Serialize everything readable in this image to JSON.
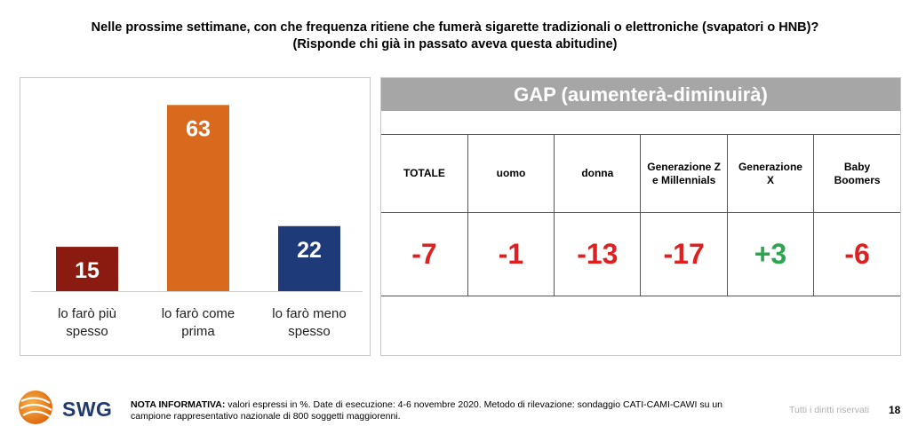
{
  "title": {
    "line1": "Nelle prossime settimane, con che frequenza ritiene che fumerà sigarette tradizionali o elettroniche (svapatori o HNB)?",
    "line2": "(Risponde chi già in passato aveva questa abitudine)"
  },
  "chart_data": [
    {
      "type": "bar",
      "categories": [
        "lo farò più spesso",
        "lo farò come prima",
        "lo farò meno spesso"
      ],
      "category_lines": [
        [
          "lo farò più",
          "spesso"
        ],
        [
          "lo farò come",
          "prima"
        ],
        [
          "lo farò meno",
          "spesso"
        ]
      ],
      "values": [
        15,
        63,
        22
      ],
      "colors": [
        "#8b1a10",
        "#d9691c",
        "#1f3a78"
      ],
      "ylim": [
        0,
        70
      ],
      "grid": false
    },
    {
      "type": "table",
      "title": "GAP (aumenterà-diminuirà)",
      "columns": [
        "TOTALE",
        "uomo",
        "donna",
        "Generazione Z e Millennials",
        "Generazione X",
        "Baby Boomers"
      ],
      "column_lines": [
        [
          "TOTALE"
        ],
        [
          "uomo"
        ],
        [
          "donna"
        ],
        [
          "Generazione Z",
          "e Millennials"
        ],
        [
          "Generazione",
          "X"
        ],
        [
          "Baby",
          "Boomers"
        ]
      ],
      "values": [
        "-7",
        "-1",
        "-13",
        "-17",
        "+3",
        "-6"
      ],
      "value_colors": [
        "#e02020",
        "#e02020",
        "#e02020",
        "#e02020",
        "#2da44e",
        "#e02020"
      ]
    }
  ],
  "footer": {
    "logo_text": "SWG",
    "note_bold": "NOTA INFORMATIVA:",
    "note_text": " valori espressi in %. Date di esecuzione: 4-6 novembre 2020. Metodo di rilevazione: sondaggio CATI-CAMI-CAWI su un campione rappresentativo nazionale di 800 soggetti maggiorenni.",
    "rights": "Tutti i diritti riservati",
    "page_number": "18"
  }
}
